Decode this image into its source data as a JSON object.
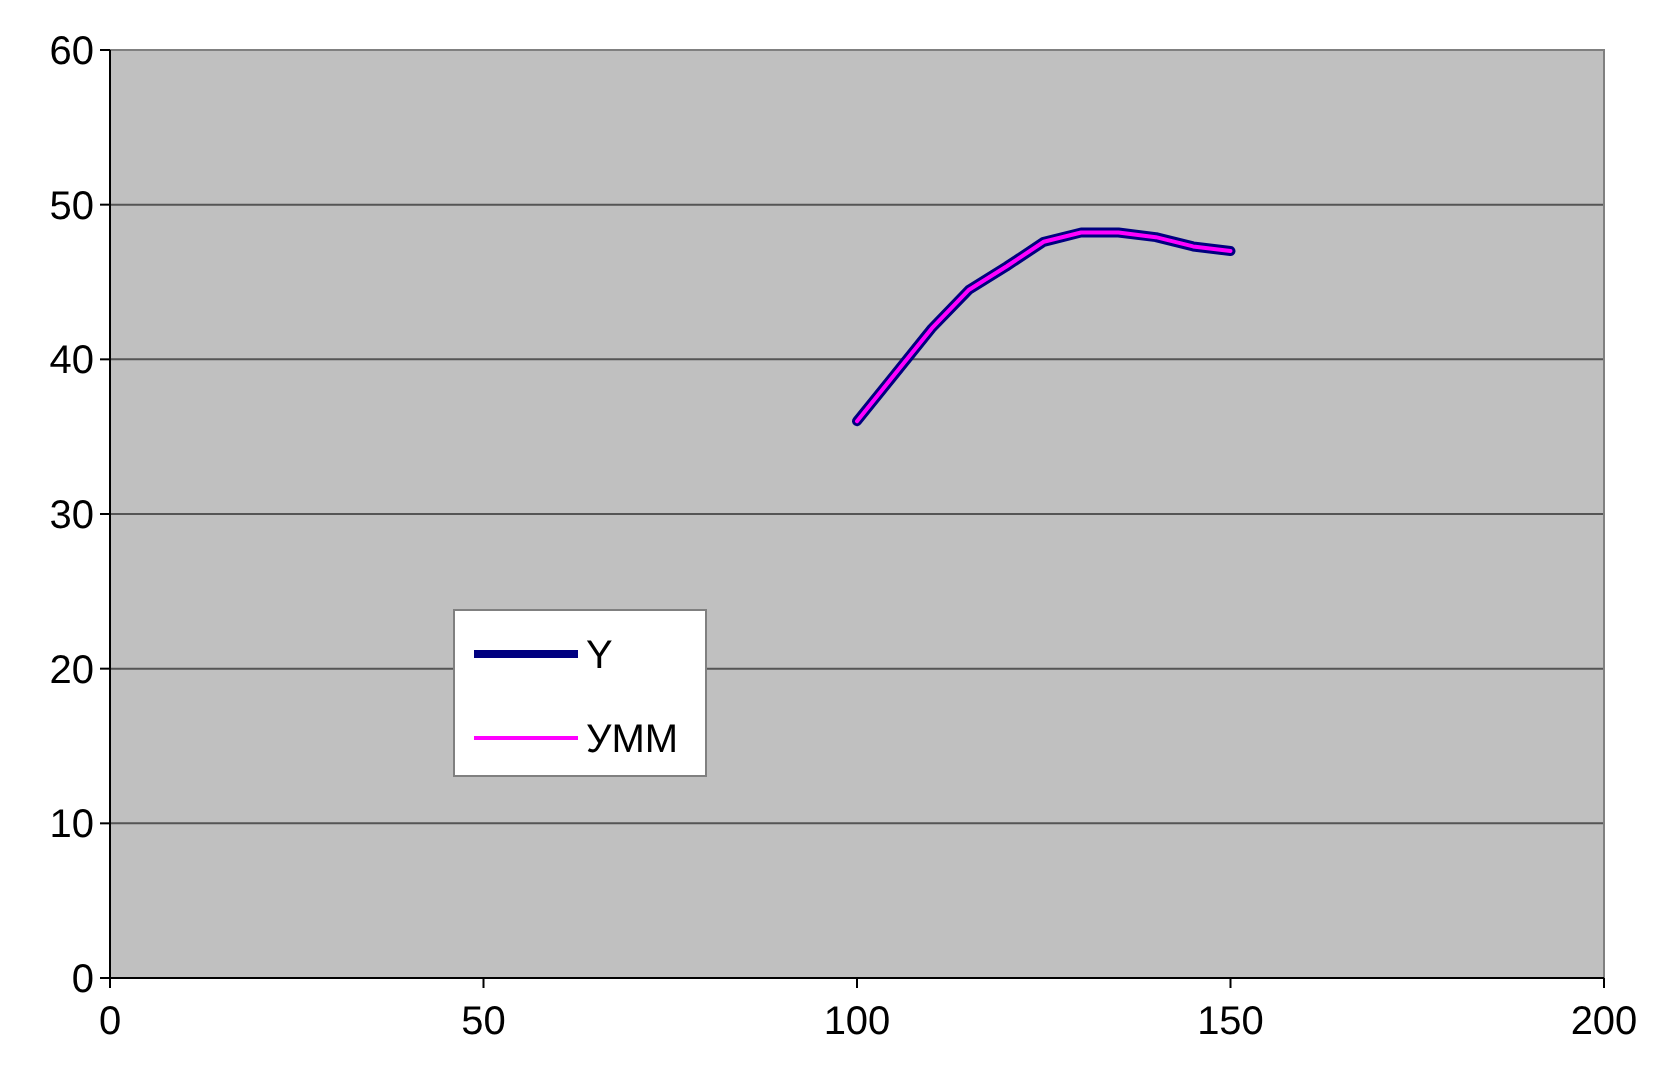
{
  "chart_data": {
    "type": "line",
    "x": [
      100,
      105,
      110,
      115,
      120,
      125,
      130,
      135,
      140,
      145,
      150
    ],
    "series": [
      {
        "name": "Y",
        "color": "#000080",
        "values": [
          36,
          39,
          42,
          44.5,
          46,
          47.6,
          48.2,
          48.2,
          47.9,
          47.3,
          47
        ]
      },
      {
        "name": "УММ",
        "color": "#ff00ff",
        "values": [
          36,
          39,
          42,
          44.5,
          46,
          47.6,
          48.2,
          48.2,
          47.9,
          47.3,
          47
        ]
      }
    ],
    "xlim": [
      0,
      200
    ],
    "xticks": [
      0,
      50,
      100,
      150,
      200
    ],
    "ylim": [
      0,
      60
    ],
    "yticks": [
      0,
      10,
      20,
      30,
      40,
      50,
      60
    ],
    "grid": "y",
    "legend": "left",
    "marker": "none",
    "line_style": "solid"
  }
}
